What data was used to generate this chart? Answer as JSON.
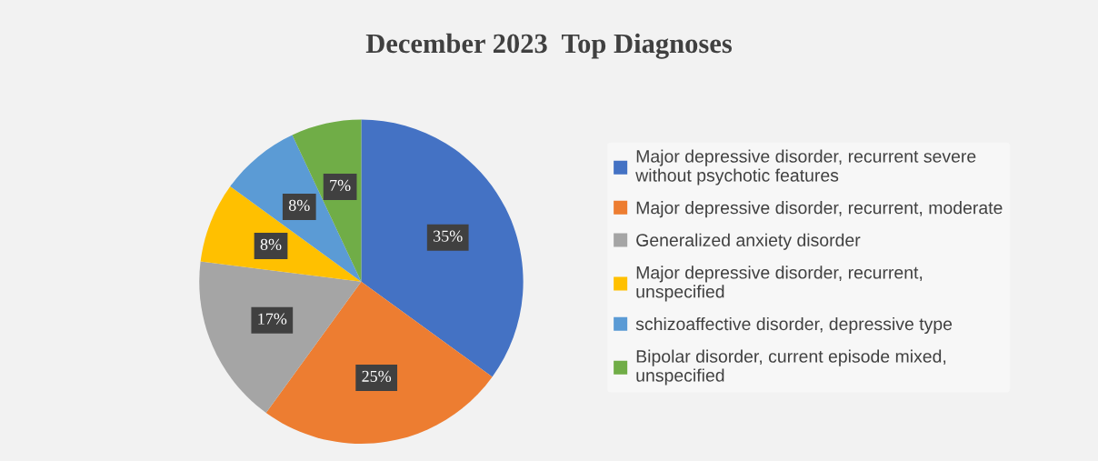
{
  "chart_data": {
    "type": "pie",
    "title": "December 2023  Top Diagnoses",
    "categories": [
      "Major depressive disorder, recurrent severe without psychotic features",
      "Major depressive disorder, recurrent, moderate",
      "Generalized anxiety disorder",
      "Major depressive disorder, recurrent, unspecified",
      "schizoaffective disorder, depressive type",
      "Bipolar disorder, current episode mixed, unspecified"
    ],
    "values": [
      35,
      25,
      17,
      8,
      8,
      7
    ],
    "colors": [
      "#4472c4",
      "#ed7d31",
      "#a5a5a5",
      "#ffc000",
      "#5b9bd5",
      "#70ad47"
    ],
    "value_labels": [
      "35%",
      "25%",
      "17%",
      "8%",
      "8%",
      "7%"
    ],
    "legend": "right"
  }
}
